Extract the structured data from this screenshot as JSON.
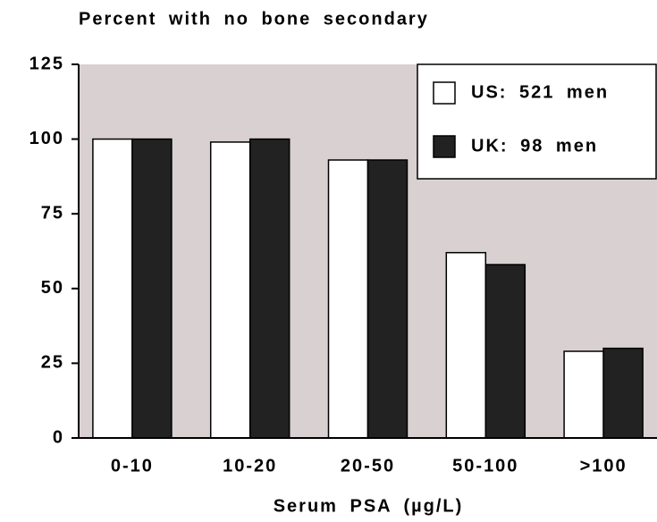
{
  "chart_data": {
    "type": "bar",
    "title": "Percent with no bone secondary",
    "x_label": "Serum PSA (µg/L)",
    "categories": [
      "0-10",
      "10-20",
      "20-50",
      "50-100",
      ">100"
    ],
    "series": [
      {
        "name": "US: 521 men",
        "color": "#ffffff",
        "values": [
          100,
          99,
          93,
          62,
          29
        ]
      },
      {
        "name": "UK: 98 men",
        "color": "#222222",
        "values": [
          100,
          100,
          93,
          58,
          30
        ]
      }
    ],
    "ylim": [
      0,
      125
    ],
    "yticks": [
      0,
      25,
      50,
      75,
      100,
      125
    ],
    "legend": "top-right",
    "background": "#d9d1d1"
  }
}
